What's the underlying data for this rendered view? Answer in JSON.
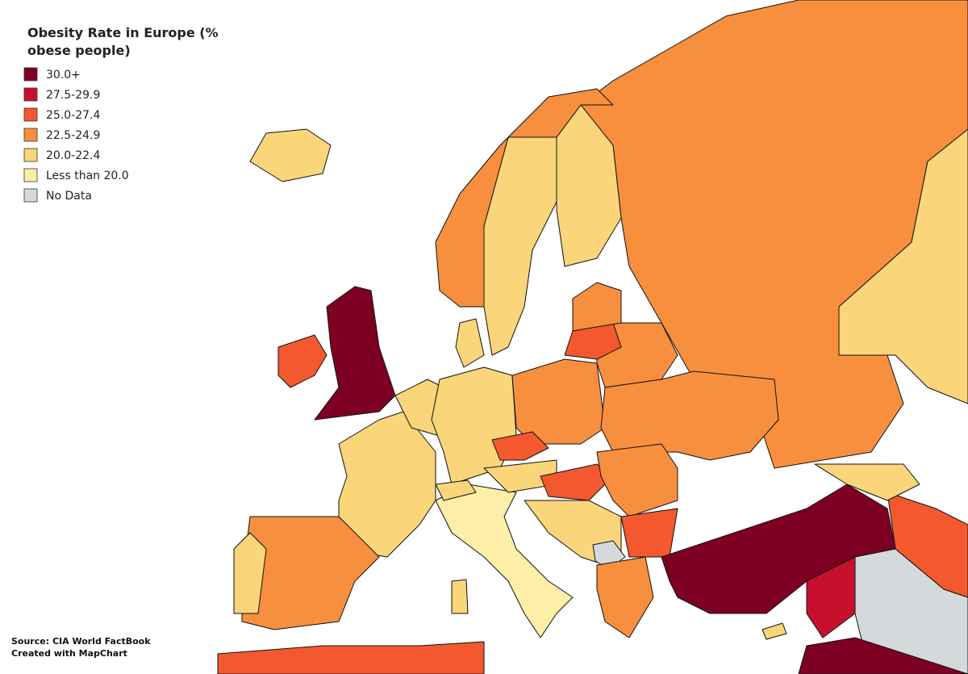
{
  "title": "Obesity Rate in Europe (% obese people)",
  "legend": [
    {
      "label": "30.0+",
      "color": "#7d0023"
    },
    {
      "label": "27.5-29.9",
      "color": "#c8102e"
    },
    {
      "label": "25.0-27.4",
      "color": "#f4582f"
    },
    {
      "label": "22.5-24.9",
      "color": "#f78f3f"
    },
    {
      "label": "20.0-22.4",
      "color": "#fad57a"
    },
    {
      "label": "Less than 20.0",
      "color": "#fdeea8"
    },
    {
      "label": "No Data",
      "color": "#d4dadc"
    }
  ],
  "source": "Source: CIA World FactBook",
  "credit": "Created with MapChart"
}
